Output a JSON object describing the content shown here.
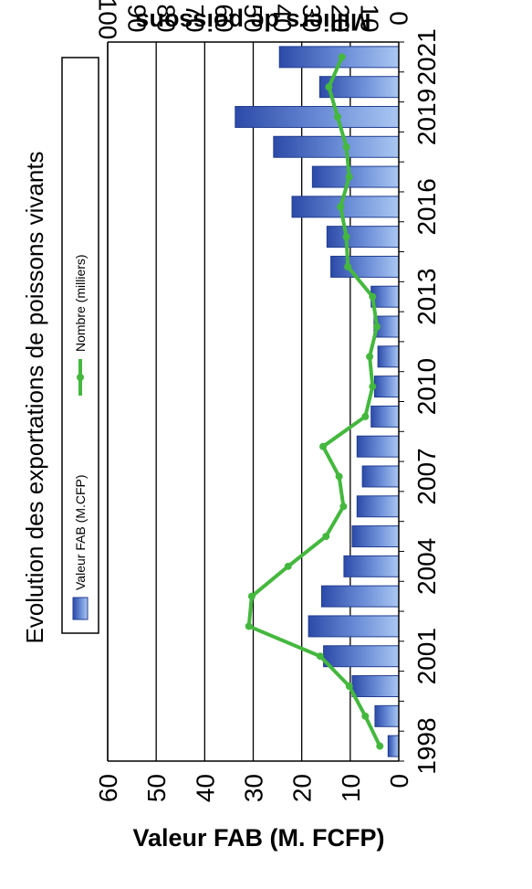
{
  "chart_data": {
    "type": "bar",
    "title": "Evolution des exportations de poissons vivants",
    "x": [
      1998,
      1999,
      2000,
      2001,
      2002,
      2003,
      2004,
      2005,
      2006,
      2007,
      2008,
      2009,
      2010,
      2011,
      2012,
      2013,
      2014,
      2015,
      2016,
      2017,
      2018,
      2019,
      2020,
      2021
    ],
    "x_tick_labels": [
      "1998",
      "2001",
      "2004",
      "2007",
      "2010",
      "2013",
      "2016",
      "2019",
      "2021"
    ],
    "x_tick_values": [
      1998,
      2001,
      2004,
      2007,
      2010,
      2013,
      2016,
      2019,
      2021
    ],
    "series": [
      {
        "name": "Valeur FAB (M.CFP)",
        "kind": "bar",
        "axis": "left",
        "values": [
          2.2,
          4.9,
          9.6,
          15.5,
          18.6,
          15.9,
          11.3,
          9.6,
          8.6,
          7.5,
          8.6,
          5.7,
          5.0,
          4.3,
          5.1,
          5.7,
          14.0,
          14.8,
          22.0,
          17.8,
          25.8,
          33.7,
          16.3,
          24.6
        ],
        "color": "#4a67c0"
      },
      {
        "name": "Nombre (milliers)",
        "kind": "line",
        "axis": "right",
        "values": [
          6.5,
          11.5,
          17,
          27,
          51.5,
          50.5,
          38,
          25,
          19,
          20.5,
          26,
          11.5,
          9,
          10,
          7.5,
          9,
          17.5,
          18,
          20,
          17,
          18,
          21,
          24,
          19.5
        ],
        "color": "#44b83e"
      }
    ],
    "y_left": {
      "label": "Valeur FAB (M. FCFP)",
      "lim": [
        0,
        60
      ],
      "ticks": [
        0,
        10,
        20,
        30,
        40,
        50,
        60
      ]
    },
    "y_right": {
      "label": "Milliers de poissons",
      "lim": [
        0,
        100
      ],
      "ticks": [
        0,
        10,
        20,
        30,
        40,
        50,
        60,
        70,
        80,
        90,
        100
      ]
    },
    "grid": true,
    "legend_position": "top-left"
  }
}
